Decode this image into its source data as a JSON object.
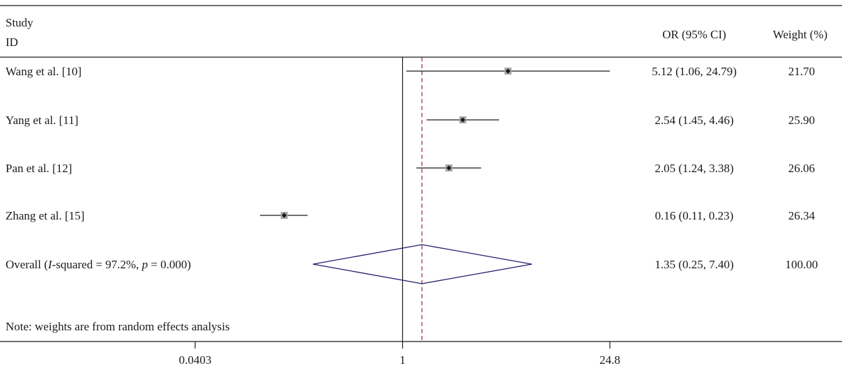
{
  "header": {
    "study_label": "Study",
    "id_label": "ID",
    "or_label": "OR (95% CI)",
    "weight_label": "Weight (%)"
  },
  "overall": {
    "label_prefix": "Overall (",
    "label_i": "I",
    "label_middle": "-squared = 97.2%, ",
    "label_p": "p",
    "label_suffix": " = 0.000)",
    "or_text": "1.35 (0.25, 7.40)",
    "weight_text": "100.00"
  },
  "note": "Note: weights are from random effects analysis",
  "colors": {
    "diamond": "#1f1f6e",
    "dashed_line": "#b22222",
    "square": "#a6a6a6",
    "point": "#1a1a1a"
  },
  "chart_data": {
    "type": "forest",
    "scale": "log",
    "xlim": [
      0.0403,
      24.8
    ],
    "xticks": [
      0.0403,
      1,
      24.8
    ],
    "xtick_labels": [
      "0.0403",
      "1",
      "24.8"
    ],
    "null_line": 1,
    "overall_line": 1.35,
    "studies": [
      {
        "name": "Wang et al. [10]",
        "or": 5.12,
        "lo": 1.06,
        "hi": 24.79,
        "or_text": "5.12 (1.06, 24.79)",
        "weight": 21.7,
        "weight_text": "21.70"
      },
      {
        "name": "Yang et al. [11]",
        "or": 2.54,
        "lo": 1.45,
        "hi": 4.46,
        "or_text": "2.54 (1.45, 4.46)",
        "weight": 25.9,
        "weight_text": "25.90"
      },
      {
        "name": "Pan et al. [12]",
        "or": 2.05,
        "lo": 1.24,
        "hi": 3.38,
        "or_text": "2.05 (1.24, 3.38)",
        "weight": 26.06,
        "weight_text": "26.06"
      },
      {
        "name": "Zhang et al. [15]",
        "or": 0.16,
        "lo": 0.11,
        "hi": 0.23,
        "or_text": "0.16 (0.11, 0.23)",
        "weight": 26.34,
        "weight_text": "26.34"
      }
    ],
    "overall": {
      "or": 1.35,
      "lo": 0.25,
      "hi": 7.4,
      "weight": 100.0
    }
  }
}
